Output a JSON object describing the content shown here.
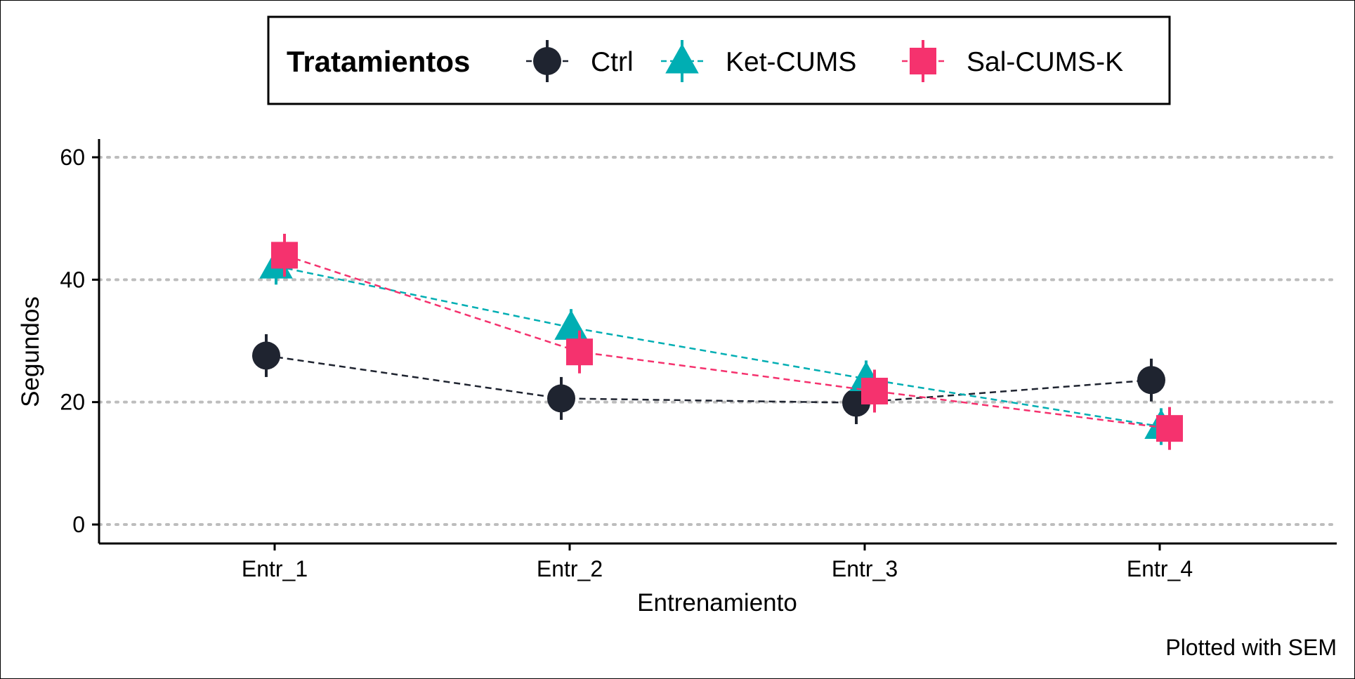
{
  "chart_data": {
    "type": "line",
    "xlabel": "Entrenamiento",
    "ylabel": "Segundos",
    "categories": [
      "Entr_1",
      "Entr_2",
      "Entr_3",
      "Entr_4"
    ],
    "ylim": [
      0,
      60
    ],
    "yticks": [
      0,
      20,
      40,
      60
    ],
    "grid": "horizontal dotted",
    "legend": {
      "title": "Tratamientos",
      "position": "top"
    },
    "caption": "Plotted with SEM",
    "series": [
      {
        "name": "Ctrl",
        "color": "#1f2430",
        "marker": "circle",
        "line": "dashed",
        "values": [
          27.6,
          20.6,
          19.9,
          23.6
        ],
        "sem": [
          3.5,
          3.5,
          3.5,
          3.5
        ]
      },
      {
        "name": "Ket-CUMS",
        "color": "#00aeb3",
        "marker": "triangle",
        "line": "dashed",
        "values": [
          42.2,
          32.2,
          23.8,
          16.0
        ],
        "sem": [
          3.0,
          3.0,
          3.0,
          3.0
        ]
      },
      {
        "name": "Sal-CUMS-K",
        "color": "#f5326e",
        "marker": "square",
        "line": "dashed",
        "values": [
          44.0,
          28.2,
          21.8,
          15.7
        ],
        "sem": [
          3.5,
          3.5,
          3.5,
          3.5
        ]
      }
    ]
  }
}
